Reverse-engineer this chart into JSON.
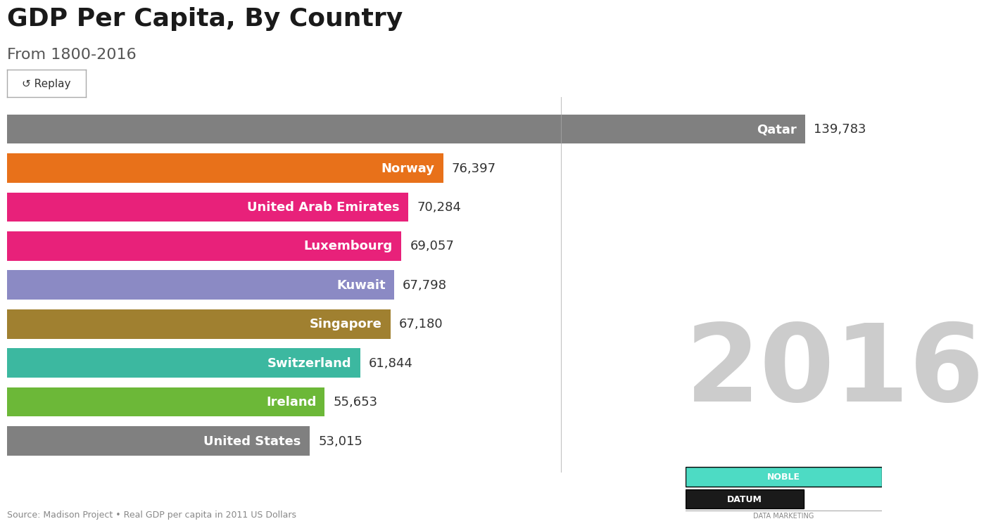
{
  "title": "GDP Per Capita, By Country",
  "subtitle": "From 1800-2016",
  "year_label": "2016",
  "source_text": "Source: Madison Project • Real GDP per capita in 2011 US Dollars",
  "categories": [
    "Qatar",
    "Norway",
    "United Arab Emirates",
    "Luxembourg",
    "Kuwait",
    "Singapore",
    "Switzerland",
    "Ireland",
    "United States"
  ],
  "values": [
    139783,
    76397,
    70284,
    69057,
    67798,
    67180,
    61844,
    55653,
    53015
  ],
  "colors": [
    "#808080",
    "#E8711A",
    "#E8217A",
    "#E8217A",
    "#8B8AC4",
    "#A08030",
    "#3CB8A0",
    "#6CB838",
    "#808080"
  ],
  "bar_labels": [
    "Qatar",
    "Norway",
    "United Arab Emirates",
    "Luxembourg",
    "Kuwait",
    "Singapore",
    "Switzerland",
    "Ireland",
    "United States"
  ],
  "value_labels": [
    "139,783",
    "76,397",
    "70,284",
    "69,057",
    "67,798",
    "67,180",
    "61,844",
    "55,653",
    "53,015"
  ],
  "background_color": "#FFFFFF",
  "title_fontsize": 26,
  "subtitle_fontsize": 16,
  "bar_label_fontsize": 13,
  "value_label_fontsize": 13,
  "year_fontsize": 110,
  "year_color": "#CCCCCC",
  "xlim": [
    0,
    155000
  ],
  "vertical_line_x": 680,
  "noble_datum_teal": "#4DDBC4",
  "noble_datum_black": "#1A1A1A"
}
